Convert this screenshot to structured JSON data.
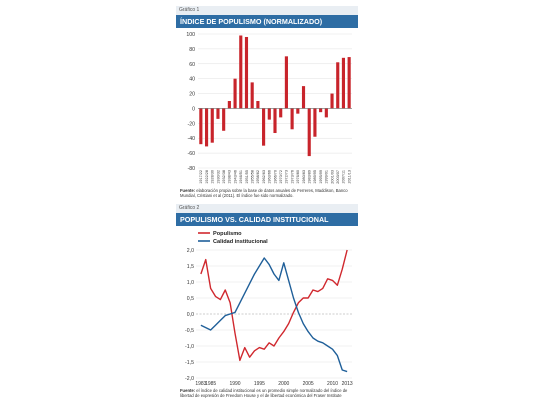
{
  "chart_data": [
    {
      "type": "bar",
      "panel_label": "Gráfico 1",
      "title": "ÍNDICE DE POPULISMO (NORMALIZADO)",
      "categories": [
        "1917/22",
        "1922/28",
        "1928/30",
        "1930/32",
        "1932/38",
        "1938/43",
        "1943/46",
        "1946/51",
        "1951/55",
        "1955/58",
        "1958/62",
        "1962/63",
        "1963/66",
        "1966/70",
        "1970/72",
        "1972/73",
        "1973/76",
        "1976/80",
        "1980/83",
        "1983/89",
        "1989/95",
        "1995/99",
        "1999/01",
        "2001/03",
        "2003/07",
        "2007/11",
        "2011/13"
      ],
      "values": [
        -48,
        -51,
        -46,
        -14,
        -30,
        10,
        40,
        98,
        96,
        35,
        10,
        -50,
        -15,
        -33,
        -12,
        70,
        -28,
        -7,
        30,
        -64,
        -38,
        -5,
        -12,
        20,
        62,
        68,
        69
      ],
      "ylim": [
        -80,
        100
      ],
      "yticks": [
        100,
        80,
        60,
        40,
        20,
        0,
        -20,
        -40,
        -60,
        -80
      ],
      "color": "#c8242b",
      "source_label": "Fuente:",
      "source_text": "elaboración propia sobre la base de datos anuales de Ferreres, Maddison, Banco Mundial, Cristiani et al (2011). El índice fue sido normalizado."
    },
    {
      "type": "line",
      "panel_label": "Gráfico 2",
      "title": "POPULISMO VS. CALIDAD INSTITUCIONAL",
      "xticks": [
        "1983",
        "1985",
        "1990",
        "1995",
        "2000",
        "2005",
        "2010",
        "2013"
      ],
      "xlim": [
        1982,
        2014
      ],
      "ylim": [
        -2.0,
        2.0
      ],
      "yticks": [
        "2,0",
        "1,5",
        "1,0",
        "0,5",
        "0,0",
        "-0,5",
        "-1,0",
        "-1,5",
        "-2,0"
      ],
      "ytick_values": [
        2.0,
        1.5,
        1.0,
        0.5,
        0.0,
        -0.5,
        -1.0,
        -1.5,
        -2.0
      ],
      "series": [
        {
          "name": "Populismo",
          "color": "#d0282e",
          "x": [
            1983,
            1984,
            1985,
            1986,
            1987,
            1988,
            1989,
            1990,
            1991,
            1992,
            1993,
            1994,
            1995,
            1996,
            1997,
            1998,
            1999,
            2000,
            2001,
            2002,
            2003,
            2004,
            2005,
            2006,
            2007,
            2008,
            2009,
            2010,
            2011,
            2012,
            2013
          ],
          "y": [
            1.25,
            1.7,
            0.8,
            0.55,
            0.45,
            0.75,
            0.35,
            -0.6,
            -1.45,
            -1.05,
            -1.35,
            -1.15,
            -1.05,
            -1.1,
            -0.9,
            -1.0,
            -0.75,
            -0.55,
            -0.3,
            0.05,
            0.35,
            0.5,
            0.5,
            0.75,
            0.7,
            0.8,
            1.1,
            1.05,
            0.9,
            1.4,
            2.0
          ]
        },
        {
          "name": "Calidad institucional",
          "color": "#1f5f99",
          "x": [
            1983,
            1985,
            1986,
            1987,
            1988,
            1989,
            1990,
            1991,
            1992,
            1993,
            1994,
            1995,
            1996,
            1997,
            1998,
            1999,
            2000,
            2001,
            2002,
            2003,
            2004,
            2005,
            2006,
            2007,
            2008,
            2009,
            2010,
            2011,
            2012,
            2013
          ],
          "y": [
            -0.35,
            -0.5,
            -0.35,
            -0.2,
            -0.05,
            0.0,
            0.05,
            0.35,
            0.65,
            0.95,
            1.25,
            1.5,
            1.75,
            1.55,
            1.25,
            1.05,
            1.6,
            1.05,
            0.5,
            0.05,
            -0.3,
            -0.55,
            -0.75,
            -0.85,
            -0.9,
            -1.0,
            -1.1,
            -1.3,
            -1.75,
            -1.8
          ]
        }
      ],
      "source_label": "Fuente:",
      "source_text": "el índice de calidad institucional es un promedio simple normalizado del índice de libertad de expresión de Freedom House y el de libertad económica del Fraser Institute"
    }
  ]
}
